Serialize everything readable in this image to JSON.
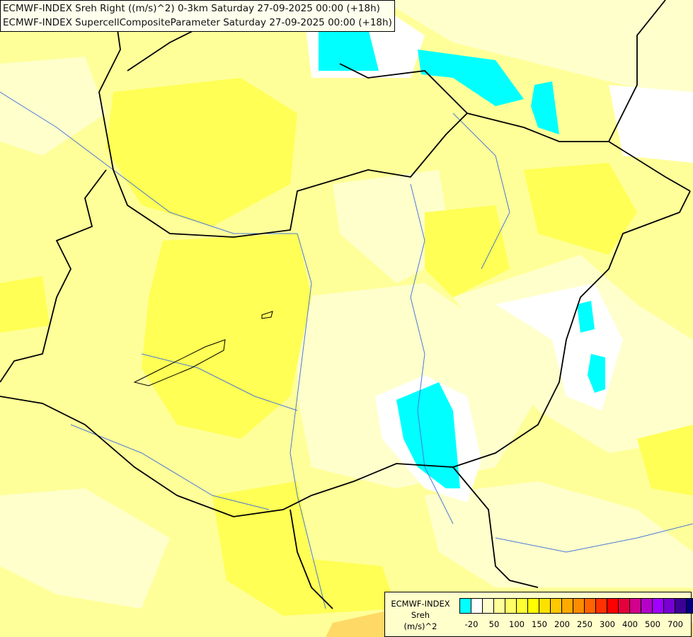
{
  "header": {
    "line1": "ECMWF-INDEX Sreh Right ((m/s)^2) 0-3km Saturday 27-09-2025 00:00 (+18h)",
    "line2": "ECMWF-INDEX SupercellCompositeParameter Saturday 27-09-2025 00:00 (+18h)"
  },
  "legend": {
    "title_line1": "ECMWF-INDEX",
    "title_line2": "Sreh",
    "title_line3": "(m/s)^2",
    "colors": [
      "#00ffff",
      "#ffffff",
      "#ffffcc",
      "#ffff99",
      "#ffff66",
      "#ffff33",
      "#ffff00",
      "#ffe100",
      "#ffc800",
      "#ffaa00",
      "#ff8c00",
      "#ff6400",
      "#ff3200",
      "#ff0000",
      "#e6003c",
      "#d2008c",
      "#b400c8",
      "#a000ff",
      "#7800d2",
      "#3c0096",
      "#000080"
    ],
    "ticks": [
      {
        "label": "-20",
        "boundary": 1
      },
      {
        "label": "50",
        "boundary": 3
      },
      {
        "label": "100",
        "boundary": 5
      },
      {
        "label": "150",
        "boundary": 7
      },
      {
        "label": "200",
        "boundary": 9
      },
      {
        "label": "250",
        "boundary": 11
      },
      {
        "label": "300",
        "boundary": 13
      },
      {
        "label": "400",
        "boundary": 15
      },
      {
        "label": "500",
        "boundary": 17
      },
      {
        "label": "700",
        "boundary": 19
      }
    ]
  }
}
